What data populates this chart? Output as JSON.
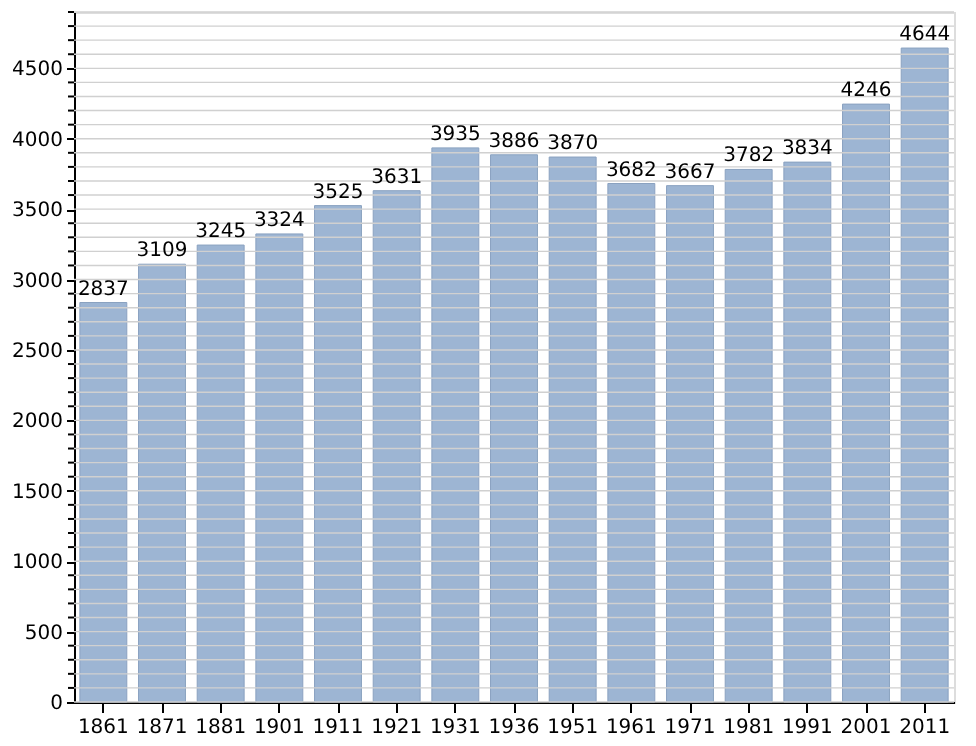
{
  "chart_data": {
    "type": "bar",
    "categories": [
      "1861",
      "1871",
      "1881",
      "1901",
      "1911",
      "1921",
      "1931",
      "1936",
      "1951",
      "1961",
      "1971",
      "1981",
      "1991",
      "2001",
      "2011"
    ],
    "values": [
      2837,
      3109,
      3245,
      3324,
      3525,
      3631,
      3935,
      3886,
      3870,
      3682,
      3667,
      3782,
      3834,
      4246,
      4644
    ],
    "color": "#9db5d3",
    "data_labels": true,
    "ylim": [
      0,
      4900
    ],
    "yticks": [
      0,
      {
        "value": 100,
        "label": null
      },
      {
        "value": 200,
        "label": null
      },
      {
        "value": 300,
        "label": null
      },
      {
        "value": 400,
        "label": null
      },
      500,
      {
        "value": 600,
        "label": null
      },
      {
        "value": 700,
        "label": null
      },
      {
        "value": 800,
        "label": null
      },
      {
        "value": 900,
        "label": null
      },
      1000,
      {
        "value": 1100,
        "label": null
      },
      {
        "value": 1200,
        "label": null
      },
      {
        "value": 1300,
        "label": null
      },
      {
        "value": 1400,
        "label": null
      },
      1500,
      {
        "value": 1600,
        "label": null
      },
      {
        "value": 1700,
        "label": null
      },
      {
        "value": 1800,
        "label": null
      },
      {
        "value": 1900,
        "label": null
      },
      2000,
      {
        "value": 2100,
        "label": null
      },
      {
        "value": 2200,
        "label": null
      },
      {
        "value": 2300,
        "label": null
      },
      {
        "value": 2400,
        "label": null
      },
      2500,
      {
        "value": 2600,
        "label": null
      },
      {
        "value": 2700,
        "label": null
      },
      {
        "value": 2800,
        "label": null
      },
      {
        "value": 2900,
        "label": null
      },
      3000,
      {
        "value": 3100,
        "label": null
      },
      {
        "value": 3200,
        "label": null
      },
      {
        "value": 3300,
        "label": null
      },
      {
        "value": 3400,
        "label": null
      },
      3500,
      {
        "value": 3600,
        "label": null
      },
      {
        "value": 3700,
        "label": null
      },
      {
        "value": 3800,
        "label": null
      },
      {
        "value": 3900,
        "label": null
      },
      4000,
      {
        "value": 4100,
        "label": null
      },
      {
        "value": 4200,
        "label": null
      },
      {
        "value": 4300,
        "label": null
      },
      {
        "value": 4400,
        "label": null
      },
      4500,
      {
        "value": 4600,
        "label": null
      },
      {
        "value": 4700,
        "label": null
      },
      {
        "value": 4800,
        "label": null
      },
      {
        "value": 4900,
        "label": null
      }
    ],
    "grid": "y"
  }
}
